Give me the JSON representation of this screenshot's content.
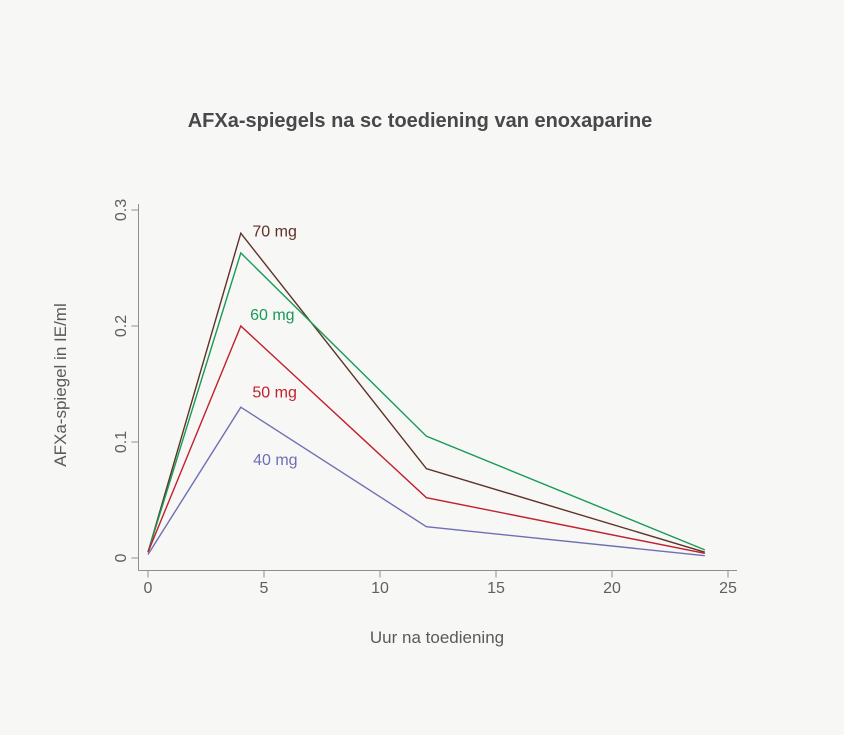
{
  "page": {
    "background": "#f7f7f6"
  },
  "chart_data": {
    "type": "line",
    "title": "AFXa-spiegels na sc toediening van enoxaparine",
    "xlabel": "Uur na toediening",
    "ylabel": "AFXa-spiegel in IE/ml",
    "x": [
      0,
      4,
      12,
      24
    ],
    "xlim": [
      0,
      25
    ],
    "ylim": [
      0,
      0.3
    ],
    "x_ticks": [
      0,
      5,
      10,
      15,
      20,
      25
    ],
    "x_tick_labels": [
      "0",
      "5",
      "10",
      "15",
      "20",
      "25"
    ],
    "y_ticks": [
      0,
      0.1,
      0.2,
      0.3
    ],
    "y_tick_labels": [
      "0",
      "0.1",
      "0.2",
      "0.3"
    ],
    "grid": false,
    "legend": "inline line labels colored to match each series",
    "series": [
      {
        "name": "70 mg",
        "color": "#5e3226",
        "values": [
          0.005,
          0.28,
          0.077,
          0.005
        ],
        "label_anchor": {
          "t": 4.5,
          "v": 0.282
        }
      },
      {
        "name": "60 mg",
        "color": "#189a56",
        "values": [
          0.005,
          0.263,
          0.105,
          0.007
        ],
        "label_anchor": {
          "t": 4.4,
          "v": 0.21
        }
      },
      {
        "name": "50 mg",
        "color": "#c2202e",
        "values": [
          0.005,
          0.2,
          0.052,
          0.004
        ],
        "label_anchor": {
          "t": 4.5,
          "v": 0.143
        }
      },
      {
        "name": "40 mg",
        "color": "#6f6fb4",
        "values": [
          0.003,
          0.13,
          0.027,
          0.002
        ],
        "label_anchor": {
          "t": 4.53,
          "v": 0.085
        }
      }
    ],
    "colors": {
      "axis": "#8f8f8f",
      "tick_text": "#606060",
      "title_text": "#48484a",
      "axis_title_text": "#5a5a5a"
    }
  }
}
